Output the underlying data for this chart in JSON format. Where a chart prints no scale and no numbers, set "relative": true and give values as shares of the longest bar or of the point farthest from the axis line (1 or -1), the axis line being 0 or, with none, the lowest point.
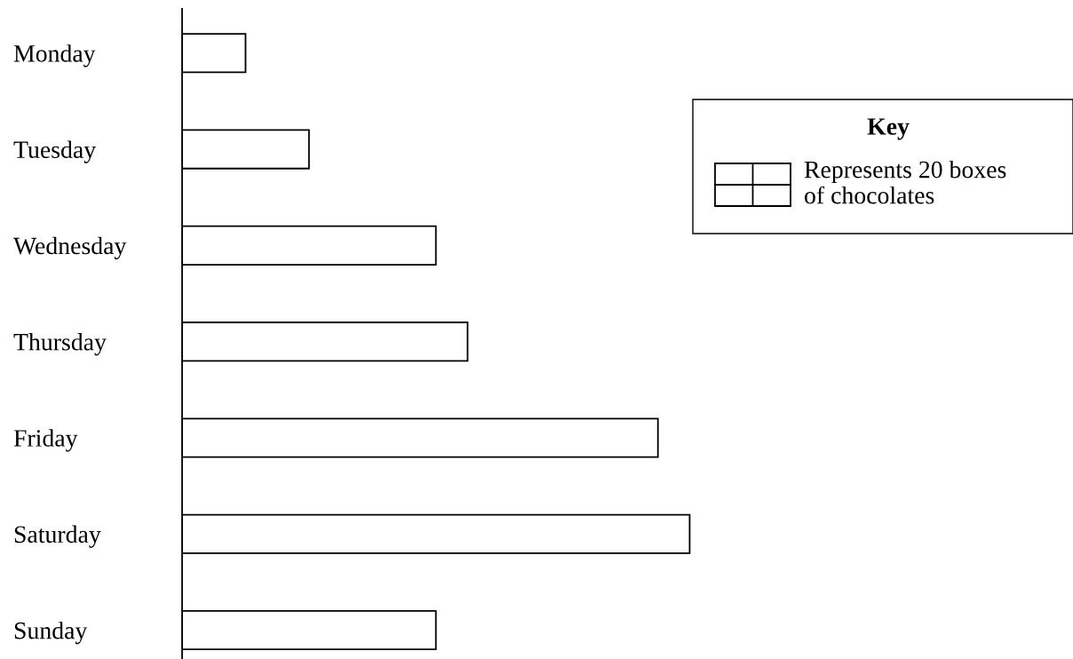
{
  "chart_data": {
    "type": "bar",
    "orientation": "horizontal",
    "relative": true,
    "categories": [
      "Monday",
      "Tuesday",
      "Wednesday",
      "Thursday",
      "Friday",
      "Saturday",
      "Sunday"
    ],
    "values": [
      0.125,
      0.25,
      0.5,
      0.5625,
      0.9375,
      1,
      0.5
    ],
    "color": "#ffffff",
    "annotations": [
      "Key",
      "Represents 20 boxes\nof chocolates"
    ],
    "legend": false,
    "grid": false
  }
}
